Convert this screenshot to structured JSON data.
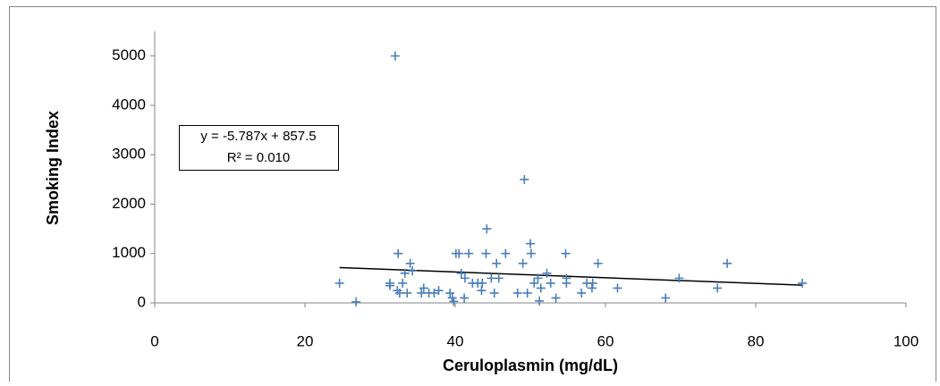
{
  "chart_data": {
    "type": "scatter",
    "x_label": "Ceruloplasmin (mg/dL)",
    "y_label": "Smoking Index",
    "xlim": [
      0,
      100
    ],
    "xticks": [
      0,
      20,
      40,
      60,
      80,
      100
    ],
    "ylim": [
      0,
      5500
    ],
    "yticks": [
      0,
      1000,
      2000,
      3000,
      4000,
      5000
    ],
    "grid": false,
    "series": [
      {
        "name": "Smoking Index",
        "color": "#4a7ebb",
        "x": [
          24.6,
          26.8,
          31.3,
          31.3,
          32.3,
          32.4,
          32.6,
          33.0,
          33.3,
          33.6,
          34.0,
          34.3,
          35.5,
          35.8,
          36.5,
          37.2,
          37.8,
          39.3,
          39.6,
          39.8,
          40.1,
          40.5,
          40.8,
          41.2,
          41.3,
          41.8,
          42.3,
          43.0,
          43.5,
          43.6,
          44.1,
          44.2,
          44.8,
          45.2,
          45.5,
          45.8,
          46.7,
          48.3,
          49.0,
          49.2,
          49.6,
          50.0,
          50.1,
          50.5,
          51.0,
          51.2,
          51.4,
          52.2,
          52.7,
          53.4,
          54.7,
          54.8,
          54.8,
          56.8,
          57.5,
          58.2,
          58.3,
          59.0,
          61.6,
          68.0,
          69.8,
          74.9,
          76.2,
          86.2,
          32.0
        ],
        "values": [
          400,
          20,
          400,
          350,
          250,
          1000,
          200,
          400,
          600,
          200,
          800,
          650,
          200,
          300,
          200,
          200,
          250,
          200,
          100,
          30,
          1000,
          1000,
          600,
          100,
          500,
          1000,
          400,
          400,
          250,
          400,
          1000,
          1500,
          500,
          200,
          800,
          500,
          1000,
          200,
          800,
          2500,
          200,
          1200,
          1000,
          400,
          500,
          40,
          300,
          600,
          400,
          100,
          1000,
          400,
          500,
          200,
          400,
          300,
          400,
          800,
          300,
          100,
          500,
          300,
          800,
          400,
          5000
        ]
      }
    ],
    "trendline": {
      "equation": "y = -5.787x + 857.5",
      "r2": "R² = 0.010",
      "slope": -5.787,
      "intercept": 857.5,
      "x_range": [
        24.6,
        86.2
      ],
      "color": "#000000"
    }
  }
}
